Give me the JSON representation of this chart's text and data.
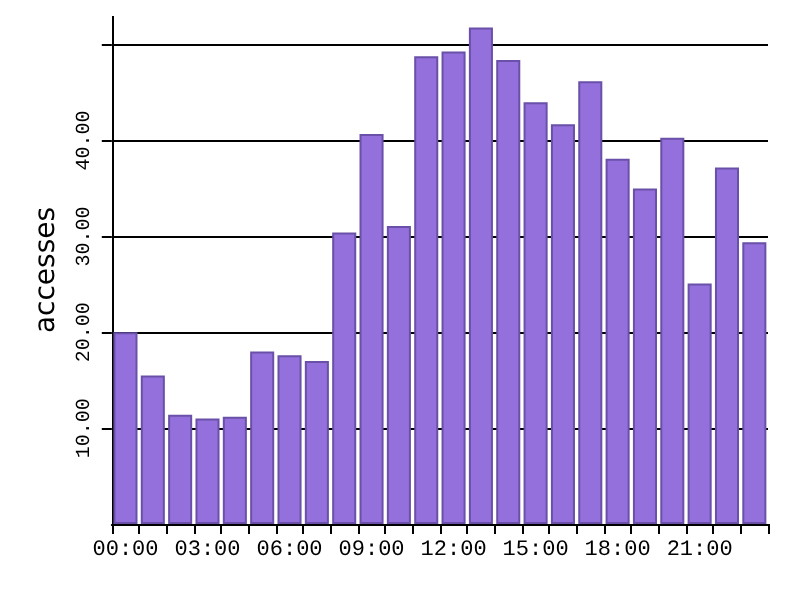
{
  "chart_data": {
    "type": "bar",
    "ylabel": "accesses",
    "categories": [
      "00:00",
      null,
      null,
      "03:00",
      null,
      null,
      "06:00",
      null,
      null,
      "09:00",
      null,
      null,
      "12:00",
      null,
      null,
      "15:00",
      null,
      null,
      "18:00",
      null,
      null,
      "21:00",
      null,
      null
    ],
    "values": [
      20.0,
      15.5,
      11.4,
      11.0,
      11.2,
      18.0,
      17.6,
      17.0,
      30.4,
      40.7,
      31.1,
      48.8,
      49.3,
      51.8,
      48.4,
      44.0,
      41.7,
      46.2,
      38.1,
      35.0,
      40.3,
      25.1,
      37.2,
      29.4
    ],
    "color": "#9370db",
    "ylim": [
      0,
      53
    ],
    "yticks": [
      {
        "value": 10,
        "label": "10.00"
      },
      {
        "value": 20,
        "label": "20.00"
      },
      {
        "value": 30,
        "label": "30.00"
      },
      {
        "value": 40,
        "label": "40.00"
      },
      {
        "value": 50,
        "label": null
      }
    ],
    "grid": "y"
  }
}
